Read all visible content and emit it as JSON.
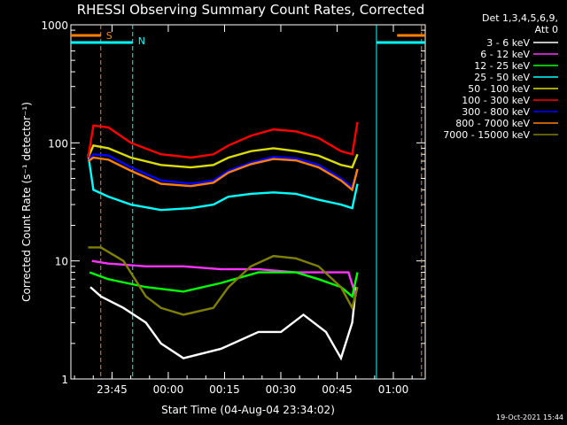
{
  "chart_data": {
    "type": "line",
    "title": "RHESSI Observing Summary Count Rates, Corrected",
    "xlabel": "Start Time (04-Aug-04 23:34:02)",
    "ylabel": "Corrected Count Rate (s⁻¹ detector⁻¹)",
    "yscale": "log",
    "ylim": [
      1,
      1000
    ],
    "xlim": [
      "23:34:02",
      "01:08:30"
    ],
    "x_ticks": [
      "23:45",
      "00:00",
      "00:15",
      "00:30",
      "00:45",
      "01:00"
    ],
    "y_ticks": [
      "1",
      "10",
      "100",
      "1000"
    ],
    "legend_header": [
      "Det 1,3,4,5,6,9,",
      "Att 0"
    ],
    "legend_position": "top-right",
    "markers": [
      {
        "label": "S",
        "color": "#ff8000"
      },
      {
        "label": "N",
        "color": "#00ffff"
      }
    ],
    "series": [
      {
        "name": "3 - 6 keV",
        "color": "#ffffff",
        "values": [
          [
            2.6,
            6
          ],
          [
            4,
            5
          ],
          [
            7,
            4
          ],
          [
            10,
            3
          ],
          [
            12,
            2
          ],
          [
            15,
            1.5
          ],
          [
            20,
            1.8
          ],
          [
            25,
            2.5
          ],
          [
            28,
            2.5
          ],
          [
            31,
            3.5
          ],
          [
            34,
            2.5
          ],
          [
            36,
            1.5
          ],
          [
            37.5,
            3
          ],
          [
            38,
            6
          ]
        ]
      },
      {
        "name": "6 - 12 keV",
        "color": "#ff33ff",
        "values": [
          [
            2.8,
            10
          ],
          [
            5,
            9.5
          ],
          [
            10,
            9
          ],
          [
            15,
            9
          ],
          [
            20,
            8.5
          ],
          [
            25,
            8.5
          ],
          [
            30,
            8
          ],
          [
            35,
            8
          ],
          [
            37,
            8
          ],
          [
            38,
            5
          ]
        ]
      },
      {
        "name": "12 - 25 keV",
        "color": "#00ff00",
        "values": [
          [
            2.5,
            8
          ],
          [
            5,
            7
          ],
          [
            10,
            6
          ],
          [
            15,
            5.5
          ],
          [
            20,
            6.5
          ],
          [
            25,
            8
          ],
          [
            30,
            8
          ],
          [
            33,
            7
          ],
          [
            36,
            6
          ],
          [
            37.5,
            5
          ],
          [
            38.2,
            8
          ]
        ]
      },
      {
        "name": "25 - 50 keV",
        "color": "#00ffff",
        "values": [
          [
            2.3,
            80
          ],
          [
            3,
            40
          ],
          [
            5,
            35
          ],
          [
            8,
            30
          ],
          [
            12,
            27
          ],
          [
            16,
            28
          ],
          [
            19,
            30
          ],
          [
            21,
            35
          ],
          [
            24,
            37
          ],
          [
            27,
            38
          ],
          [
            30,
            37
          ],
          [
            33,
            33
          ],
          [
            36,
            30
          ],
          [
            37.5,
            28
          ],
          [
            38.2,
            45
          ]
        ]
      },
      {
        "name": "50 - 100 keV",
        "color": "#dddd00",
        "values": [
          [
            2.3,
            75
          ],
          [
            3,
            95
          ],
          [
            5,
            90
          ],
          [
            8,
            75
          ],
          [
            12,
            65
          ],
          [
            16,
            62
          ],
          [
            19,
            65
          ],
          [
            21,
            75
          ],
          [
            24,
            85
          ],
          [
            27,
            90
          ],
          [
            30,
            85
          ],
          [
            33,
            78
          ],
          [
            36,
            65
          ],
          [
            37.5,
            62
          ],
          [
            38.2,
            80
          ]
        ]
      },
      {
        "name": "100 - 300 keV",
        "color": "#ff0000",
        "values": [
          [
            2.3,
            75
          ],
          [
            3,
            140
          ],
          [
            5,
            135
          ],
          [
            8,
            100
          ],
          [
            12,
            80
          ],
          [
            16,
            75
          ],
          [
            19,
            80
          ],
          [
            21,
            95
          ],
          [
            24,
            115
          ],
          [
            27,
            130
          ],
          [
            30,
            125
          ],
          [
            33,
            110
          ],
          [
            36,
            85
          ],
          [
            37.5,
            80
          ],
          [
            38.2,
            150
          ]
        ]
      },
      {
        "name": "300 - 800 keV",
        "color": "#0000ff",
        "values": [
          [
            2.3,
            70
          ],
          [
            3,
            80
          ],
          [
            5,
            78
          ],
          [
            8,
            62
          ],
          [
            12,
            48
          ],
          [
            16,
            45
          ],
          [
            19,
            48
          ],
          [
            21,
            58
          ],
          [
            24,
            68
          ],
          [
            27,
            76
          ],
          [
            30,
            74
          ],
          [
            33,
            65
          ],
          [
            36,
            50
          ],
          [
            37.5,
            42
          ],
          [
            38.2,
            60
          ]
        ]
      },
      {
        "name": "800 - 7000 keV",
        "color": "#ff8000",
        "values": [
          [
            2.3,
            70
          ],
          [
            3,
            75
          ],
          [
            5,
            72
          ],
          [
            8,
            58
          ],
          [
            12,
            45
          ],
          [
            16,
            43
          ],
          [
            19,
            46
          ],
          [
            21,
            56
          ],
          [
            24,
            66
          ],
          [
            27,
            73
          ],
          [
            30,
            71
          ],
          [
            33,
            62
          ],
          [
            36,
            48
          ],
          [
            37.5,
            40
          ],
          [
            38.2,
            60
          ]
        ]
      },
      {
        "name": "7000 - 15000 keV",
        "color": "#808000",
        "values": [
          [
            2.3,
            13
          ],
          [
            4,
            13
          ],
          [
            7,
            10
          ],
          [
            10,
            5
          ],
          [
            12,
            4
          ],
          [
            15,
            3.5
          ],
          [
            19,
            4
          ],
          [
            21,
            6
          ],
          [
            24,
            9
          ],
          [
            27,
            11
          ],
          [
            30,
            10.5
          ],
          [
            33,
            9
          ],
          [
            36,
            6
          ],
          [
            37.5,
            4
          ],
          [
            38.2,
            6
          ]
        ]
      }
    ]
  },
  "footer": {
    "timestamp": "19-Oct-2021 15:44"
  }
}
